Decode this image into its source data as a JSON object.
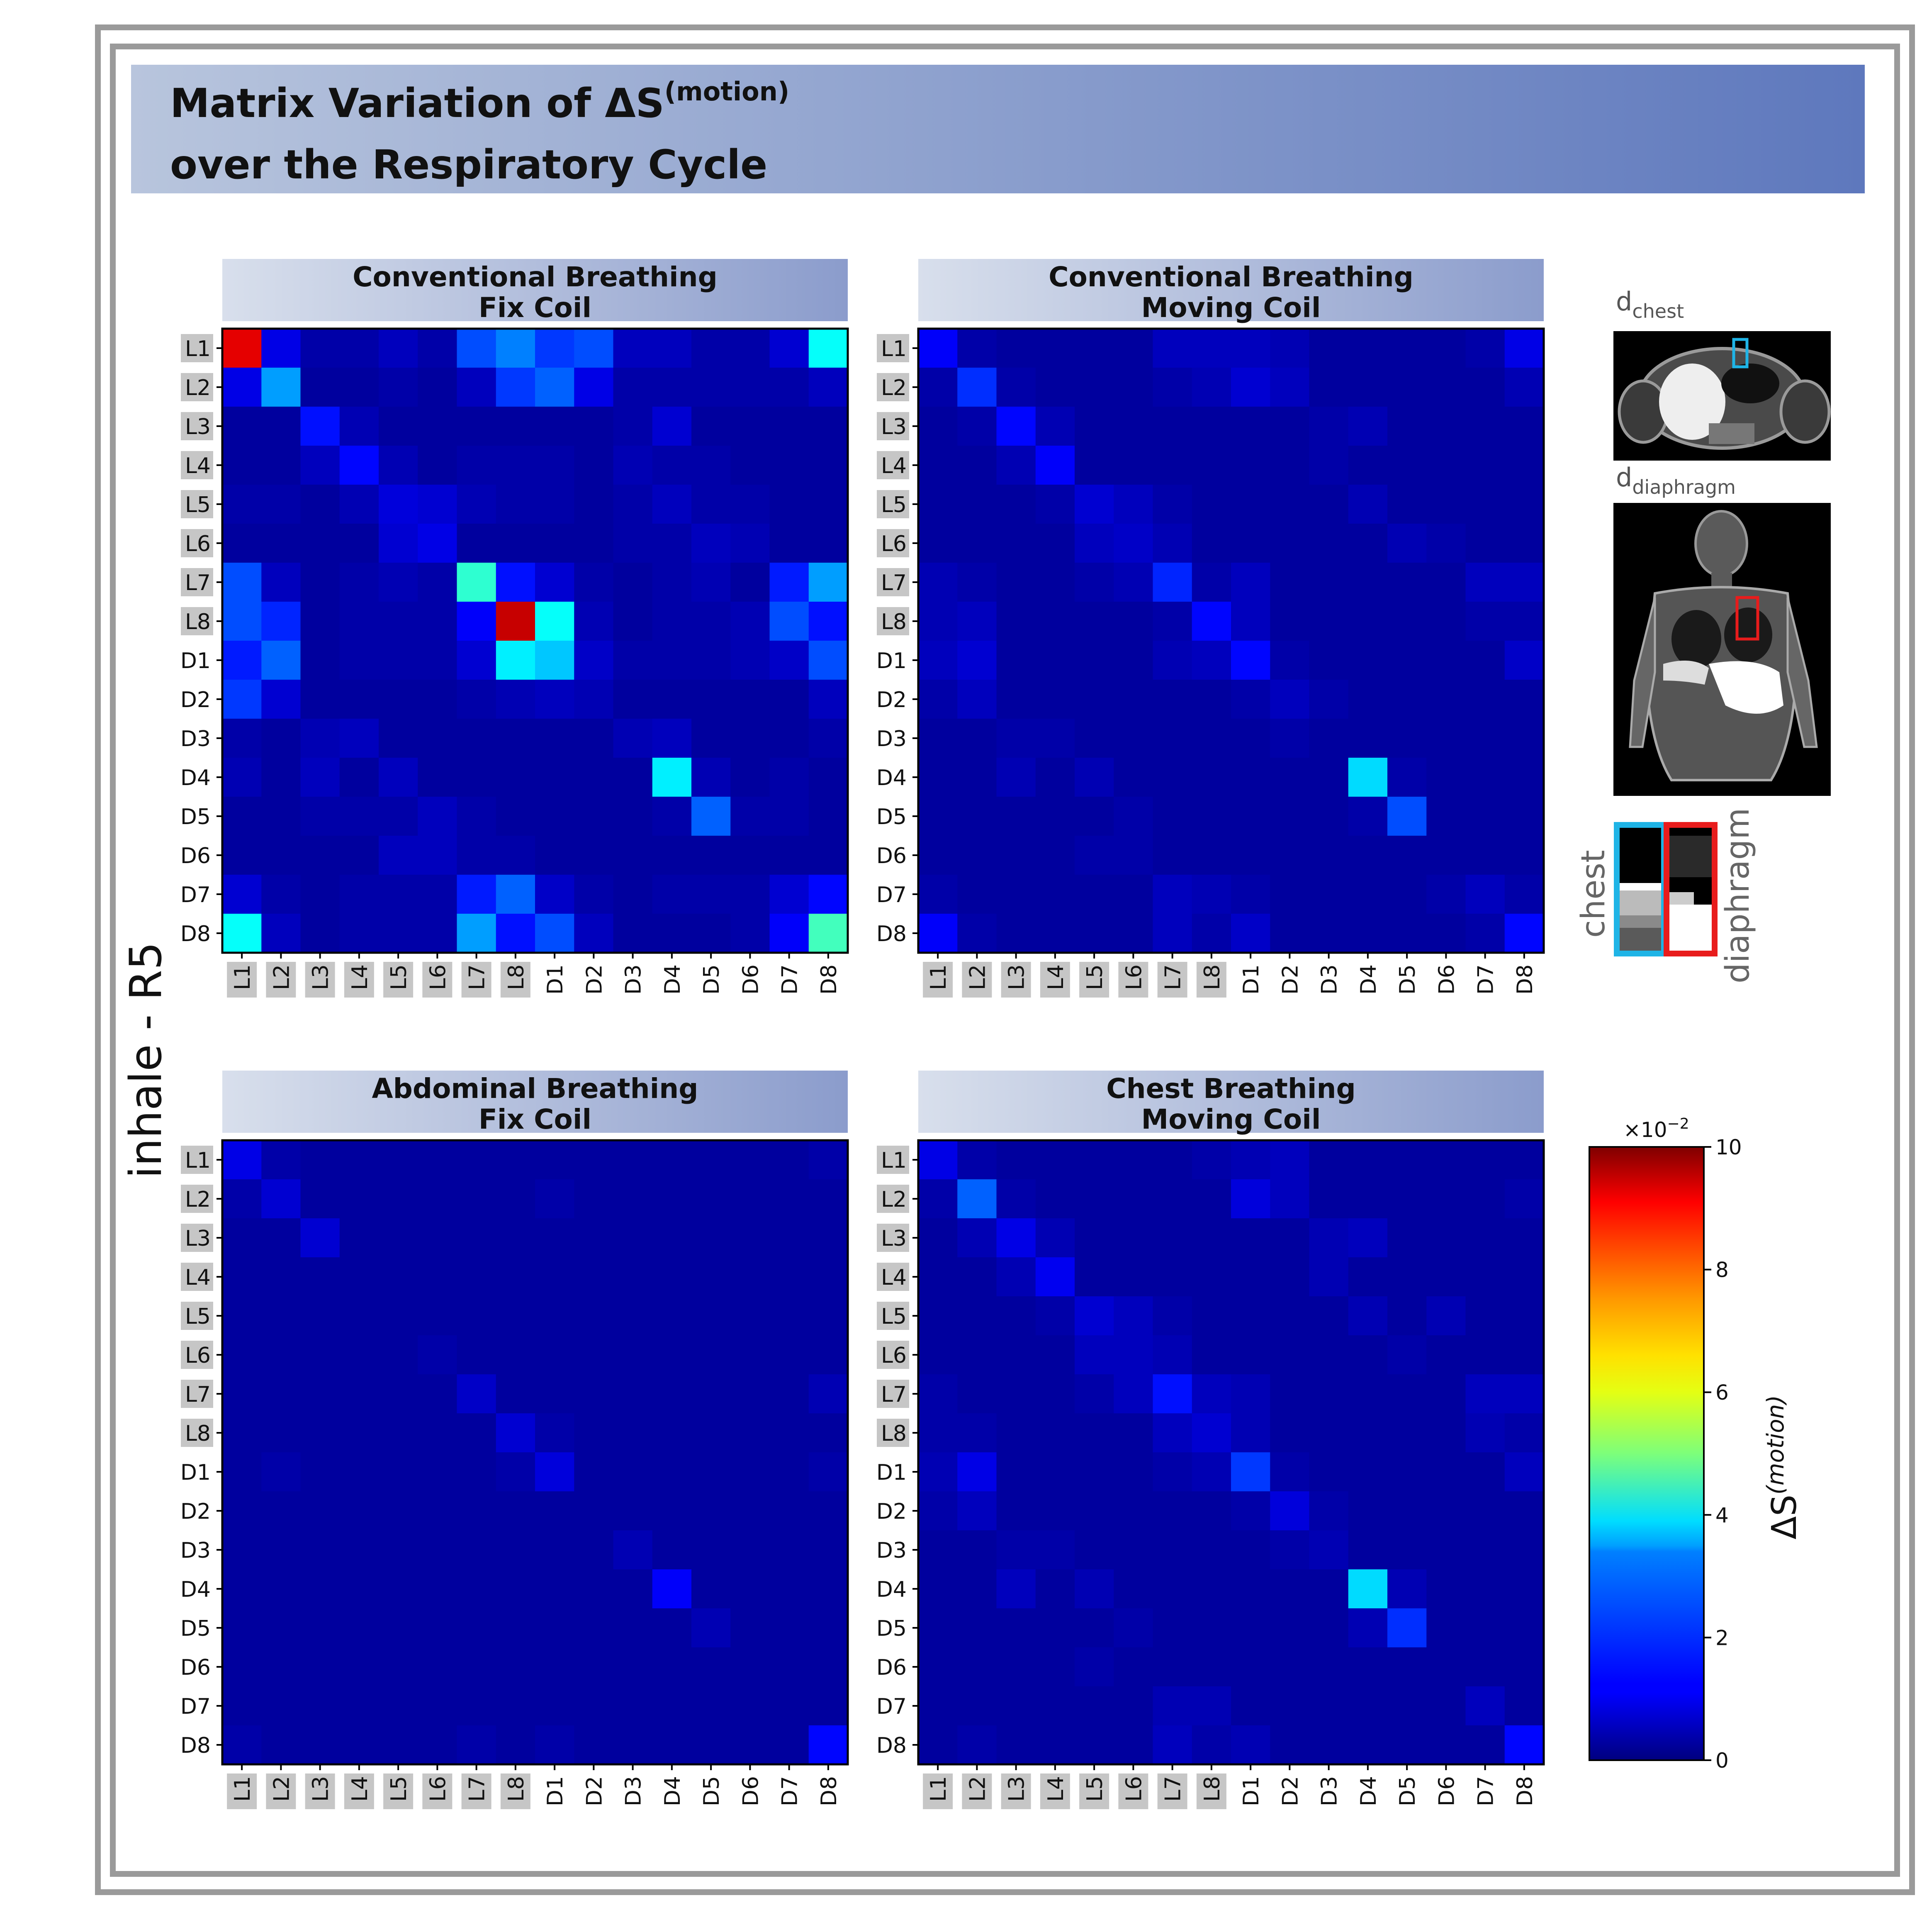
{
  "figure": {
    "title_line1": "Matrix Variation of ΔS",
    "title_sup": "(motion)",
    "title_line2": "over the Respiratory Cycle",
    "row_label": "inhale - R5"
  },
  "anatomy": {
    "chest_label": "d",
    "chest_sub": "chest",
    "diaphragm_label": "d",
    "diaphragm_sub": "diaphragm",
    "inset_chest": "chest",
    "inset_diaphragm": "diaphragm",
    "chest_color": "#1fb4e6",
    "diaphragm_color": "#e81c1c"
  },
  "colorbar": {
    "exponent_label": "×10",
    "exponent_sup": "−2",
    "label_main": "ΔS",
    "label_sup": "(motion)",
    "min": 0,
    "max": 10,
    "ticks": [
      "0",
      "2",
      "4",
      "6",
      "8",
      "10"
    ],
    "colormap": "jet"
  },
  "chart_data": [
    {
      "type": "heatmap",
      "title": "Conventional Breathing Fix Coil",
      "title_line1": "Conventional Breathing",
      "title_line2": "Fix Coil",
      "labels": [
        "L1",
        "L2",
        "L3",
        "L4",
        "L5",
        "L6",
        "L7",
        "L8",
        "D1",
        "D2",
        "D3",
        "D4",
        "D5",
        "D6",
        "D7",
        "D8"
      ],
      "scale_factor": "×10^-2",
      "values": [
        [
          9.0,
          1.0,
          0.4,
          0.4,
          0.6,
          0.4,
          2.0,
          2.5,
          1.8,
          2.0,
          0.6,
          0.6,
          0.4,
          0.4,
          0.8,
          3.8
        ],
        [
          1.0,
          2.8,
          0.3,
          0.3,
          0.4,
          0.3,
          0.6,
          1.8,
          2.2,
          1.0,
          0.4,
          0.4,
          0.4,
          0.4,
          0.4,
          0.6
        ],
        [
          0.3,
          0.3,
          1.4,
          0.5,
          0.3,
          0.3,
          0.3,
          0.3,
          0.3,
          0.3,
          0.4,
          0.8,
          0.3,
          0.3,
          0.3,
          0.3
        ],
        [
          0.3,
          0.3,
          0.6,
          1.3,
          0.5,
          0.3,
          0.4,
          0.4,
          0.4,
          0.3,
          0.5,
          0.4,
          0.4,
          0.3,
          0.3,
          0.3
        ],
        [
          0.4,
          0.4,
          0.3,
          0.5,
          0.9,
          0.8,
          0.5,
          0.4,
          0.4,
          0.3,
          0.4,
          0.6,
          0.4,
          0.4,
          0.3,
          0.3
        ],
        [
          0.3,
          0.3,
          0.3,
          0.3,
          0.8,
          1.0,
          0.3,
          0.3,
          0.3,
          0.3,
          0.4,
          0.4,
          0.6,
          0.5,
          0.3,
          0.3
        ],
        [
          2.0,
          0.6,
          0.3,
          0.4,
          0.5,
          0.4,
          4.2,
          1.4,
          0.8,
          0.4,
          0.3,
          0.4,
          0.5,
          0.3,
          1.5,
          2.8
        ],
        [
          2.0,
          1.6,
          0.3,
          0.4,
          0.4,
          0.4,
          1.2,
          9.3,
          3.8,
          0.5,
          0.3,
          0.4,
          0.4,
          0.5,
          2.0,
          1.4
        ],
        [
          1.5,
          2.2,
          0.3,
          0.4,
          0.4,
          0.4,
          0.8,
          3.6,
          3.2,
          0.7,
          0.4,
          0.4,
          0.4,
          0.5,
          0.7,
          2.0
        ],
        [
          1.8,
          0.8,
          0.3,
          0.3,
          0.3,
          0.3,
          0.4,
          0.5,
          0.6,
          0.5,
          0.3,
          0.3,
          0.3,
          0.3,
          0.3,
          0.6
        ],
        [
          0.4,
          0.3,
          0.5,
          0.6,
          0.3,
          0.3,
          0.3,
          0.3,
          0.3,
          0.3,
          0.5,
          0.6,
          0.3,
          0.3,
          0.3,
          0.4
        ],
        [
          0.5,
          0.3,
          0.6,
          0.3,
          0.6,
          0.3,
          0.3,
          0.3,
          0.3,
          0.3,
          0.3,
          3.6,
          0.5,
          0.3,
          0.4,
          0.3
        ],
        [
          0.3,
          0.3,
          0.4,
          0.4,
          0.4,
          0.6,
          0.4,
          0.3,
          0.3,
          0.3,
          0.3,
          0.4,
          2.2,
          0.4,
          0.4,
          0.3
        ],
        [
          0.3,
          0.3,
          0.3,
          0.3,
          0.6,
          0.6,
          0.4,
          0.4,
          0.3,
          0.3,
          0.3,
          0.3,
          0.3,
          0.3,
          0.3,
          0.3
        ],
        [
          0.8,
          0.4,
          0.3,
          0.4,
          0.4,
          0.4,
          1.5,
          2.2,
          0.7,
          0.4,
          0.3,
          0.4,
          0.4,
          0.4,
          0.8,
          1.3
        ],
        [
          3.8,
          0.6,
          0.3,
          0.4,
          0.4,
          0.4,
          2.8,
          1.4,
          2.0,
          0.6,
          0.3,
          0.3,
          0.3,
          0.4,
          1.2,
          4.4
        ]
      ]
    },
    {
      "type": "heatmap",
      "title": "Conventional Breathing Moving Coil",
      "title_line1": "Conventional Breathing",
      "title_line2": "Moving Coil",
      "labels": [
        "L1",
        "L2",
        "L3",
        "L4",
        "L5",
        "L6",
        "L7",
        "L8",
        "D1",
        "D2",
        "D3",
        "D4",
        "D5",
        "D6",
        "D7",
        "D8"
      ],
      "scale_factor": "×10^-2",
      "values": [
        [
          1.2,
          0.4,
          0.3,
          0.3,
          0.3,
          0.3,
          0.6,
          0.6,
          0.6,
          0.5,
          0.3,
          0.3,
          0.3,
          0.3,
          0.4,
          1.0
        ],
        [
          0.4,
          1.7,
          0.4,
          0.3,
          0.3,
          0.3,
          0.4,
          0.5,
          0.8,
          0.6,
          0.3,
          0.3,
          0.3,
          0.3,
          0.3,
          0.5
        ],
        [
          0.3,
          0.4,
          1.3,
          0.5,
          0.3,
          0.3,
          0.3,
          0.3,
          0.3,
          0.3,
          0.4,
          0.5,
          0.3,
          0.3,
          0.3,
          0.3
        ],
        [
          0.3,
          0.3,
          0.5,
          1.2,
          0.3,
          0.3,
          0.3,
          0.3,
          0.3,
          0.3,
          0.4,
          0.3,
          0.3,
          0.3,
          0.3,
          0.3
        ],
        [
          0.3,
          0.3,
          0.3,
          0.4,
          0.8,
          0.6,
          0.4,
          0.3,
          0.3,
          0.3,
          0.3,
          0.5,
          0.3,
          0.3,
          0.3,
          0.3
        ],
        [
          0.3,
          0.3,
          0.3,
          0.3,
          0.6,
          0.7,
          0.5,
          0.3,
          0.3,
          0.3,
          0.3,
          0.3,
          0.5,
          0.4,
          0.3,
          0.3
        ],
        [
          0.5,
          0.4,
          0.3,
          0.3,
          0.4,
          0.5,
          1.6,
          0.4,
          0.6,
          0.3,
          0.3,
          0.3,
          0.3,
          0.3,
          0.6,
          0.6
        ],
        [
          0.5,
          0.6,
          0.3,
          0.3,
          0.3,
          0.3,
          0.4,
          1.3,
          0.6,
          0.3,
          0.3,
          0.3,
          0.3,
          0.3,
          0.4,
          0.4
        ],
        [
          0.6,
          0.8,
          0.3,
          0.3,
          0.3,
          0.3,
          0.5,
          0.6,
          1.3,
          0.4,
          0.3,
          0.3,
          0.3,
          0.3,
          0.3,
          0.7
        ],
        [
          0.4,
          0.6,
          0.3,
          0.3,
          0.3,
          0.3,
          0.3,
          0.3,
          0.4,
          0.6,
          0.4,
          0.3,
          0.3,
          0.3,
          0.3,
          0.3
        ],
        [
          0.3,
          0.3,
          0.4,
          0.4,
          0.3,
          0.3,
          0.3,
          0.3,
          0.3,
          0.4,
          0.3,
          0.3,
          0.3,
          0.3,
          0.3,
          0.3
        ],
        [
          0.3,
          0.3,
          0.5,
          0.3,
          0.5,
          0.3,
          0.3,
          0.3,
          0.3,
          0.3,
          0.3,
          3.4,
          0.4,
          0.3,
          0.3,
          0.3
        ],
        [
          0.3,
          0.3,
          0.3,
          0.3,
          0.3,
          0.4,
          0.3,
          0.3,
          0.3,
          0.3,
          0.3,
          0.4,
          2.0,
          0.3,
          0.3,
          0.3
        ],
        [
          0.3,
          0.3,
          0.3,
          0.3,
          0.4,
          0.4,
          0.3,
          0.3,
          0.3,
          0.3,
          0.3,
          0.3,
          0.3,
          0.3,
          0.3,
          0.3
        ],
        [
          0.4,
          0.3,
          0.3,
          0.3,
          0.3,
          0.3,
          0.6,
          0.5,
          0.4,
          0.3,
          0.3,
          0.3,
          0.3,
          0.4,
          0.6,
          0.4
        ],
        [
          1.2,
          0.4,
          0.3,
          0.3,
          0.3,
          0.3,
          0.6,
          0.4,
          0.7,
          0.3,
          0.3,
          0.3,
          0.3,
          0.3,
          0.4,
          1.3
        ]
      ]
    },
    {
      "type": "heatmap",
      "title": "Abdominal Breathing Fix Coil",
      "title_line1": "Abdominal Breathing",
      "title_line2": "Fix Coil",
      "labels": [
        "L1",
        "L2",
        "L3",
        "L4",
        "L5",
        "L6",
        "L7",
        "L8",
        "D1",
        "D2",
        "D3",
        "D4",
        "D5",
        "D6",
        "D7",
        "D8"
      ],
      "scale_factor": "×10^-2",
      "values": [
        [
          1.0,
          0.4,
          0.3,
          0.3,
          0.3,
          0.3,
          0.3,
          0.3,
          0.3,
          0.3,
          0.3,
          0.3,
          0.3,
          0.3,
          0.3,
          0.4
        ],
        [
          0.4,
          0.8,
          0.3,
          0.3,
          0.3,
          0.3,
          0.3,
          0.3,
          0.4,
          0.3,
          0.3,
          0.3,
          0.3,
          0.3,
          0.3,
          0.3
        ],
        [
          0.3,
          0.3,
          0.8,
          0.3,
          0.3,
          0.3,
          0.3,
          0.3,
          0.3,
          0.3,
          0.3,
          0.3,
          0.3,
          0.3,
          0.3,
          0.3
        ],
        [
          0.3,
          0.3,
          0.3,
          0.3,
          0.3,
          0.3,
          0.3,
          0.3,
          0.3,
          0.3,
          0.3,
          0.3,
          0.3,
          0.3,
          0.3,
          0.3
        ],
        [
          0.3,
          0.3,
          0.3,
          0.3,
          0.3,
          0.3,
          0.3,
          0.3,
          0.3,
          0.3,
          0.3,
          0.3,
          0.3,
          0.3,
          0.3,
          0.3
        ],
        [
          0.3,
          0.3,
          0.3,
          0.3,
          0.3,
          0.4,
          0.3,
          0.3,
          0.3,
          0.3,
          0.3,
          0.3,
          0.3,
          0.3,
          0.3,
          0.3
        ],
        [
          0.3,
          0.3,
          0.3,
          0.3,
          0.3,
          0.3,
          0.7,
          0.3,
          0.3,
          0.3,
          0.3,
          0.3,
          0.3,
          0.3,
          0.3,
          0.5
        ],
        [
          0.3,
          0.3,
          0.3,
          0.3,
          0.3,
          0.3,
          0.3,
          0.8,
          0.4,
          0.3,
          0.3,
          0.3,
          0.3,
          0.3,
          0.3,
          0.3
        ],
        [
          0.3,
          0.4,
          0.3,
          0.3,
          0.3,
          0.3,
          0.3,
          0.4,
          0.9,
          0.3,
          0.3,
          0.3,
          0.3,
          0.3,
          0.3,
          0.4
        ],
        [
          0.3,
          0.3,
          0.3,
          0.3,
          0.3,
          0.3,
          0.3,
          0.3,
          0.3,
          0.3,
          0.3,
          0.3,
          0.3,
          0.3,
          0.3,
          0.3
        ],
        [
          0.3,
          0.3,
          0.3,
          0.3,
          0.3,
          0.3,
          0.3,
          0.3,
          0.3,
          0.3,
          0.5,
          0.3,
          0.3,
          0.3,
          0.3,
          0.3
        ],
        [
          0.3,
          0.3,
          0.3,
          0.3,
          0.3,
          0.3,
          0.3,
          0.3,
          0.3,
          0.3,
          0.3,
          1.2,
          0.3,
          0.3,
          0.3,
          0.3
        ],
        [
          0.3,
          0.3,
          0.3,
          0.3,
          0.3,
          0.3,
          0.3,
          0.3,
          0.3,
          0.3,
          0.3,
          0.3,
          0.5,
          0.3,
          0.3,
          0.3
        ],
        [
          0.3,
          0.3,
          0.3,
          0.3,
          0.3,
          0.3,
          0.3,
          0.3,
          0.3,
          0.3,
          0.3,
          0.3,
          0.3,
          0.3,
          0.3,
          0.3
        ],
        [
          0.3,
          0.3,
          0.3,
          0.3,
          0.3,
          0.3,
          0.3,
          0.3,
          0.3,
          0.3,
          0.3,
          0.3,
          0.3,
          0.3,
          0.3,
          0.3
        ],
        [
          0.4,
          0.3,
          0.3,
          0.3,
          0.3,
          0.3,
          0.4,
          0.3,
          0.4,
          0.3,
          0.3,
          0.3,
          0.3,
          0.3,
          0.3,
          1.3
        ]
      ]
    },
    {
      "type": "heatmap",
      "title": "Chest Breathing Moving Coil",
      "title_line1": "Chest Breathing",
      "title_line2": "Moving Coil",
      "labels": [
        "L1",
        "L2",
        "L3",
        "L4",
        "L5",
        "L6",
        "L7",
        "L8",
        "D1",
        "D2",
        "D3",
        "D4",
        "D5",
        "D6",
        "D7",
        "D8"
      ],
      "scale_factor": "×10^-2",
      "values": [
        [
          1.0,
          0.4,
          0.3,
          0.3,
          0.3,
          0.3,
          0.3,
          0.4,
          0.5,
          0.6,
          0.3,
          0.3,
          0.3,
          0.3,
          0.3,
          0.3
        ],
        [
          0.4,
          2.2,
          0.4,
          0.3,
          0.3,
          0.3,
          0.3,
          0.3,
          0.9,
          0.6,
          0.3,
          0.3,
          0.3,
          0.3,
          0.3,
          0.4
        ],
        [
          0.3,
          0.5,
          1.0,
          0.5,
          0.3,
          0.3,
          0.3,
          0.3,
          0.3,
          0.3,
          0.5,
          0.6,
          0.3,
          0.3,
          0.3,
          0.3
        ],
        [
          0.3,
          0.3,
          0.5,
          1.1,
          0.3,
          0.3,
          0.3,
          0.3,
          0.3,
          0.3,
          0.5,
          0.3,
          0.3,
          0.3,
          0.3,
          0.3
        ],
        [
          0.3,
          0.3,
          0.3,
          0.4,
          0.8,
          0.6,
          0.4,
          0.3,
          0.3,
          0.3,
          0.3,
          0.5,
          0.3,
          0.5,
          0.3,
          0.3
        ],
        [
          0.3,
          0.3,
          0.3,
          0.3,
          0.6,
          0.6,
          0.5,
          0.3,
          0.3,
          0.3,
          0.3,
          0.3,
          0.4,
          0.3,
          0.3,
          0.3
        ],
        [
          0.4,
          0.3,
          0.3,
          0.3,
          0.4,
          0.6,
          1.4,
          0.6,
          0.5,
          0.3,
          0.3,
          0.3,
          0.3,
          0.3,
          0.6,
          0.6
        ],
        [
          0.4,
          0.4,
          0.3,
          0.3,
          0.3,
          0.3,
          0.6,
          0.8,
          0.5,
          0.3,
          0.3,
          0.3,
          0.3,
          0.3,
          0.5,
          0.4
        ],
        [
          0.5,
          1.0,
          0.3,
          0.3,
          0.3,
          0.3,
          0.4,
          0.5,
          1.8,
          0.4,
          0.3,
          0.3,
          0.3,
          0.3,
          0.3,
          0.6
        ],
        [
          0.4,
          0.6,
          0.3,
          0.3,
          0.3,
          0.3,
          0.3,
          0.3,
          0.4,
          0.9,
          0.4,
          0.3,
          0.3,
          0.3,
          0.3,
          0.3
        ],
        [
          0.3,
          0.3,
          0.4,
          0.4,
          0.3,
          0.3,
          0.3,
          0.3,
          0.3,
          0.4,
          0.5,
          0.3,
          0.3,
          0.3,
          0.3,
          0.3
        ],
        [
          0.3,
          0.3,
          0.6,
          0.3,
          0.5,
          0.3,
          0.3,
          0.3,
          0.3,
          0.3,
          0.3,
          3.4,
          0.5,
          0.3,
          0.3,
          0.3
        ],
        [
          0.3,
          0.3,
          0.3,
          0.3,
          0.3,
          0.4,
          0.3,
          0.3,
          0.3,
          0.3,
          0.3,
          0.5,
          1.7,
          0.3,
          0.3,
          0.3
        ],
        [
          0.3,
          0.3,
          0.3,
          0.3,
          0.4,
          0.3,
          0.3,
          0.3,
          0.3,
          0.3,
          0.3,
          0.3,
          0.3,
          0.3,
          0.3,
          0.3
        ],
        [
          0.3,
          0.3,
          0.3,
          0.3,
          0.3,
          0.3,
          0.5,
          0.5,
          0.3,
          0.3,
          0.3,
          0.3,
          0.3,
          0.3,
          0.6,
          0.3
        ],
        [
          0.3,
          0.4,
          0.3,
          0.3,
          0.3,
          0.3,
          0.6,
          0.4,
          0.5,
          0.3,
          0.3,
          0.3,
          0.3,
          0.3,
          0.3,
          1.3
        ]
      ]
    }
  ]
}
